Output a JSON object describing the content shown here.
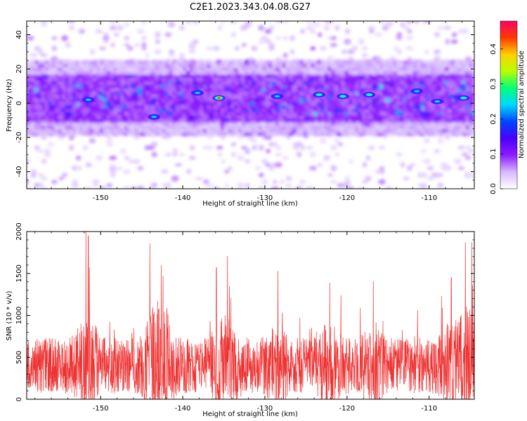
{
  "title": "C2E1.2023.343.04.08.G27",
  "chart_data": [
    {
      "type": "heatmap",
      "xlabel": "Height of straight line (km)",
      "ylabel": "Frequency (Hz)",
      "xlim": [
        -159,
        -104.5
      ],
      "ylim": [
        -50,
        48
      ],
      "xticks": [
        -150,
        -140,
        -130,
        -120,
        -110
      ],
      "yticks": [
        -40,
        -20,
        0,
        20,
        40
      ],
      "band_center_hz": 3,
      "band_halfwidth_hz": 14,
      "colorbar": {
        "label": "Normalized spectral amplitude",
        "range": [
          0.0,
          0.48
        ],
        "ticks": [
          0.0,
          0.1,
          0.2,
          0.3,
          0.4
        ],
        "ticklabels": [
          "0.0",
          "0.1",
          "0.2",
          "0.3",
          "0.4"
        ],
        "colormap": [
          "#ffffff",
          "#d6b8ff",
          "#8f1cff",
          "#4a00ff",
          "#0045ff",
          "#00d8ff",
          "#00ff7a",
          "#b7ff00",
          "#ffd000",
          "#ff3a00",
          "#ff0066"
        ]
      },
      "hotspots": [
        {
          "x": -135.6,
          "y": 3,
          "v": 0.46
        },
        {
          "x": -117.3,
          "y": 5,
          "v": 0.34
        },
        {
          "x": -123.4,
          "y": 5,
          "v": 0.32
        },
        {
          "x": -120.5,
          "y": 4,
          "v": 0.3
        },
        {
          "x": -105.8,
          "y": 3,
          "v": 0.33
        },
        {
          "x": -111.5,
          "y": 7,
          "v": 0.25
        },
        {
          "x": -138.2,
          "y": 6,
          "v": 0.27
        },
        {
          "x": -128.5,
          "y": 4,
          "v": 0.24
        },
        {
          "x": -143.5,
          "y": -8,
          "v": 0.24
        },
        {
          "x": -151.5,
          "y": 2,
          "v": 0.26
        },
        {
          "x": -109.0,
          "y": 1,
          "v": 0.25
        }
      ]
    },
    {
      "type": "line",
      "xlabel": "Height of straight line (km)",
      "ylabel": "SNR (10 * v/v)",
      "xlim": [
        -159,
        -104.5
      ],
      "ylim": [
        0,
        2000
      ],
      "xticks": [
        -150,
        -140,
        -130,
        -120,
        -110
      ],
      "yticks": [
        0,
        500,
        1000,
        1500,
        2000
      ],
      "color": "#ee3333",
      "baseline": 400,
      "noise_amplitude": 330,
      "peaks": [
        {
          "x": -151.8,
          "y": 2000
        },
        {
          "x": -151.5,
          "y": 1950
        },
        {
          "x": -144.0,
          "y": 1860
        },
        {
          "x": -142.6,
          "y": 1600
        },
        {
          "x": -142.4,
          "y": 1470
        },
        {
          "x": -135.9,
          "y": 1570
        },
        {
          "x": -134.3,
          "y": 1350
        },
        {
          "x": -128.4,
          "y": 1530
        },
        {
          "x": -122.1,
          "y": 1390
        },
        {
          "x": -116.8,
          "y": 1410
        },
        {
          "x": -107.3,
          "y": 1450
        },
        {
          "x": -105.6,
          "y": 1870
        },
        {
          "x": -104.7,
          "y": 1360
        }
      ]
    }
  ]
}
